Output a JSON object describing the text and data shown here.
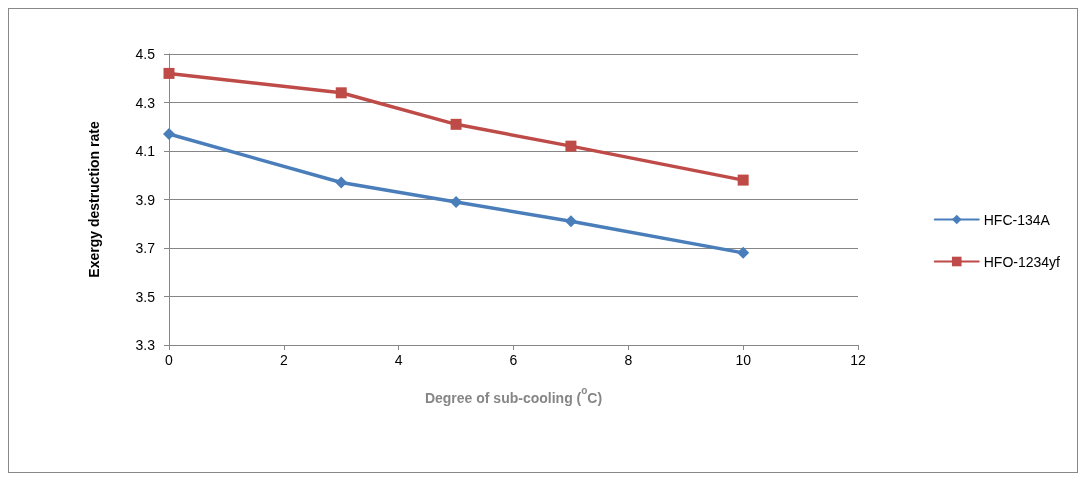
{
  "chart_data": {
    "type": "line",
    "xlabel": "Degree of sub-cooling ($^{o}$C)",
    "ylabel": "Exergy destruction rate",
    "x": [
      0,
      3,
      5,
      7,
      10
    ],
    "series": [
      {
        "name": "HFC-134A",
        "color": "#4a7ebb",
        "marker": "diamond",
        "values": [
          4.17,
          3.97,
          3.89,
          3.81,
          3.68
        ]
      },
      {
        "name": "HFO-1234yf",
        "color": "#be4b48",
        "marker": "square",
        "values": [
          4.42,
          4.34,
          4.21,
          4.12,
          3.98
        ]
      }
    ],
    "xlim": [
      0,
      12
    ],
    "xticks": [
      0,
      2,
      4,
      6,
      8,
      10,
      12
    ],
    "ylim": [
      3.3,
      4.5
    ],
    "yticks": [
      3.3,
      3.5,
      3.7,
      3.9,
      4.1,
      4.3,
      4.5
    ],
    "grid": "y",
    "legend": "right",
    "line_style": "solid"
  }
}
